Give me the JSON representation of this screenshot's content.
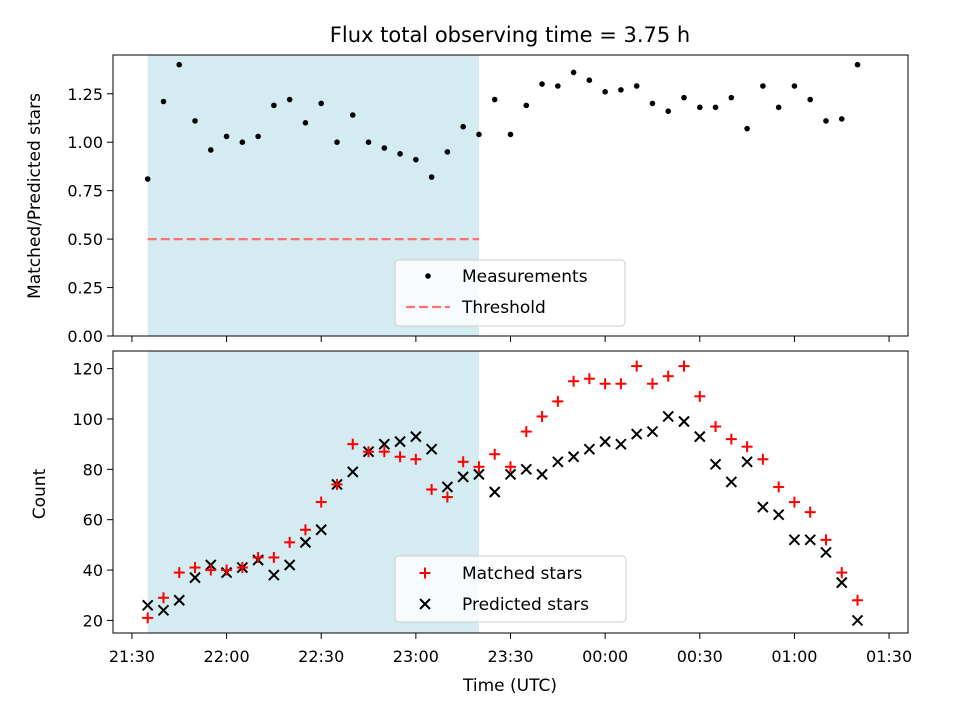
{
  "title": "Flux total observing time = 3.75 h",
  "colors": {
    "span": "#add8e6",
    "threshold": "#ff7070",
    "matched": "#ff0000",
    "predicted": "#000000",
    "measurement": "#000000"
  },
  "chart_data": [
    {
      "type": "scatter",
      "panel": "top",
      "ylabel": "Matched/Predicted stars",
      "ylim": [
        0,
        1.45
      ],
      "yticks": [
        "0.00",
        "0.25",
        "0.50",
        "0.75",
        "1.00",
        "1.25"
      ],
      "ytick_values": [
        0,
        0.25,
        0.5,
        0.75,
        1.0,
        1.25
      ],
      "shaded_span": [
        "21:35",
        "23:20 +1"
      ],
      "threshold": 0.5,
      "legend": {
        "location": "lower center",
        "entries": [
          "Measurements",
          "Threshold"
        ]
      },
      "series": [
        {
          "name": "Measurements",
          "x": [
            "21:35",
            "21:40",
            "21:45",
            "21:50",
            "21:55",
            "22:00",
            "22:05",
            "22:10",
            "22:15",
            "22:20",
            "22:25",
            "22:30",
            "22:35",
            "22:40",
            "22:45",
            "22:50",
            "22:55",
            "23:00",
            "23:05",
            "23:10",
            "23:15",
            "23:20",
            "23:25",
            "23:30",
            "23:35",
            "23:40",
            "23:45",
            "23:50",
            "23:55",
            "00:00",
            "00:05",
            "00:10",
            "00:15",
            "00:20",
            "00:25",
            "00:30",
            "00:35",
            "00:40",
            "00:45",
            "00:50",
            "00:55",
            "01:00",
            "01:05",
            "01:10",
            "01:15",
            "01:20"
          ],
          "values": [
            0.81,
            1.21,
            1.4,
            1.11,
            0.96,
            1.03,
            1.0,
            1.03,
            1.19,
            1.22,
            1.1,
            1.2,
            1.0,
            1.14,
            1.0,
            0.97,
            0.94,
            0.91,
            0.82,
            0.95,
            1.08,
            1.04,
            1.22,
            1.04,
            1.19,
            1.3,
            1.29,
            1.36,
            1.32,
            1.26,
            1.27,
            1.29,
            1.2,
            1.16,
            1.23,
            1.18,
            1.18,
            1.23,
            1.07,
            1.29,
            1.18,
            1.29,
            1.22,
            1.11,
            1.12,
            1.4
          ]
        }
      ]
    },
    {
      "type": "scatter",
      "panel": "bottom",
      "xlabel": "Time (UTC)",
      "ylabel": "Count",
      "ylim": [
        15,
        127
      ],
      "yticks": [
        "20",
        "40",
        "60",
        "80",
        "100",
        "120"
      ],
      "ytick_values": [
        20,
        40,
        60,
        80,
        100,
        120
      ],
      "xticks": [
        "21:30",
        "22:00",
        "22:30",
        "23:00",
        "23:30",
        "00:00",
        "00:30",
        "01:00",
        "01:30"
      ],
      "legend": {
        "location": "lower center",
        "entries": [
          "Matched stars",
          "Predicted stars"
        ]
      },
      "series": [
        {
          "name": "Matched stars",
          "marker": "+",
          "values": [
            21,
            29,
            39,
            41,
            40,
            40,
            41,
            45,
            45,
            51,
            56,
            67,
            74,
            90,
            87,
            87,
            85,
            84,
            72,
            69,
            83,
            81,
            86,
            81,
            95,
            101,
            107,
            115,
            116,
            114,
            114,
            121,
            114,
            117,
            121,
            109,
            97,
            92,
            89,
            84,
            73,
            67,
            63,
            52,
            39,
            28
          ]
        },
        {
          "name": "Predicted stars",
          "marker": "x",
          "values": [
            26,
            24,
            28,
            37,
            42,
            39,
            41,
            44,
            38,
            42,
            51,
            56,
            74,
            79,
            87,
            90,
            91,
            93,
            88,
            73,
            77,
            78,
            71,
            78,
            80,
            78,
            83,
            85,
            88,
            91,
            90,
            94,
            95,
            101,
            99,
            93,
            82,
            75,
            83,
            65,
            62,
            52,
            52,
            47,
            35,
            20
          ]
        }
      ]
    }
  ]
}
